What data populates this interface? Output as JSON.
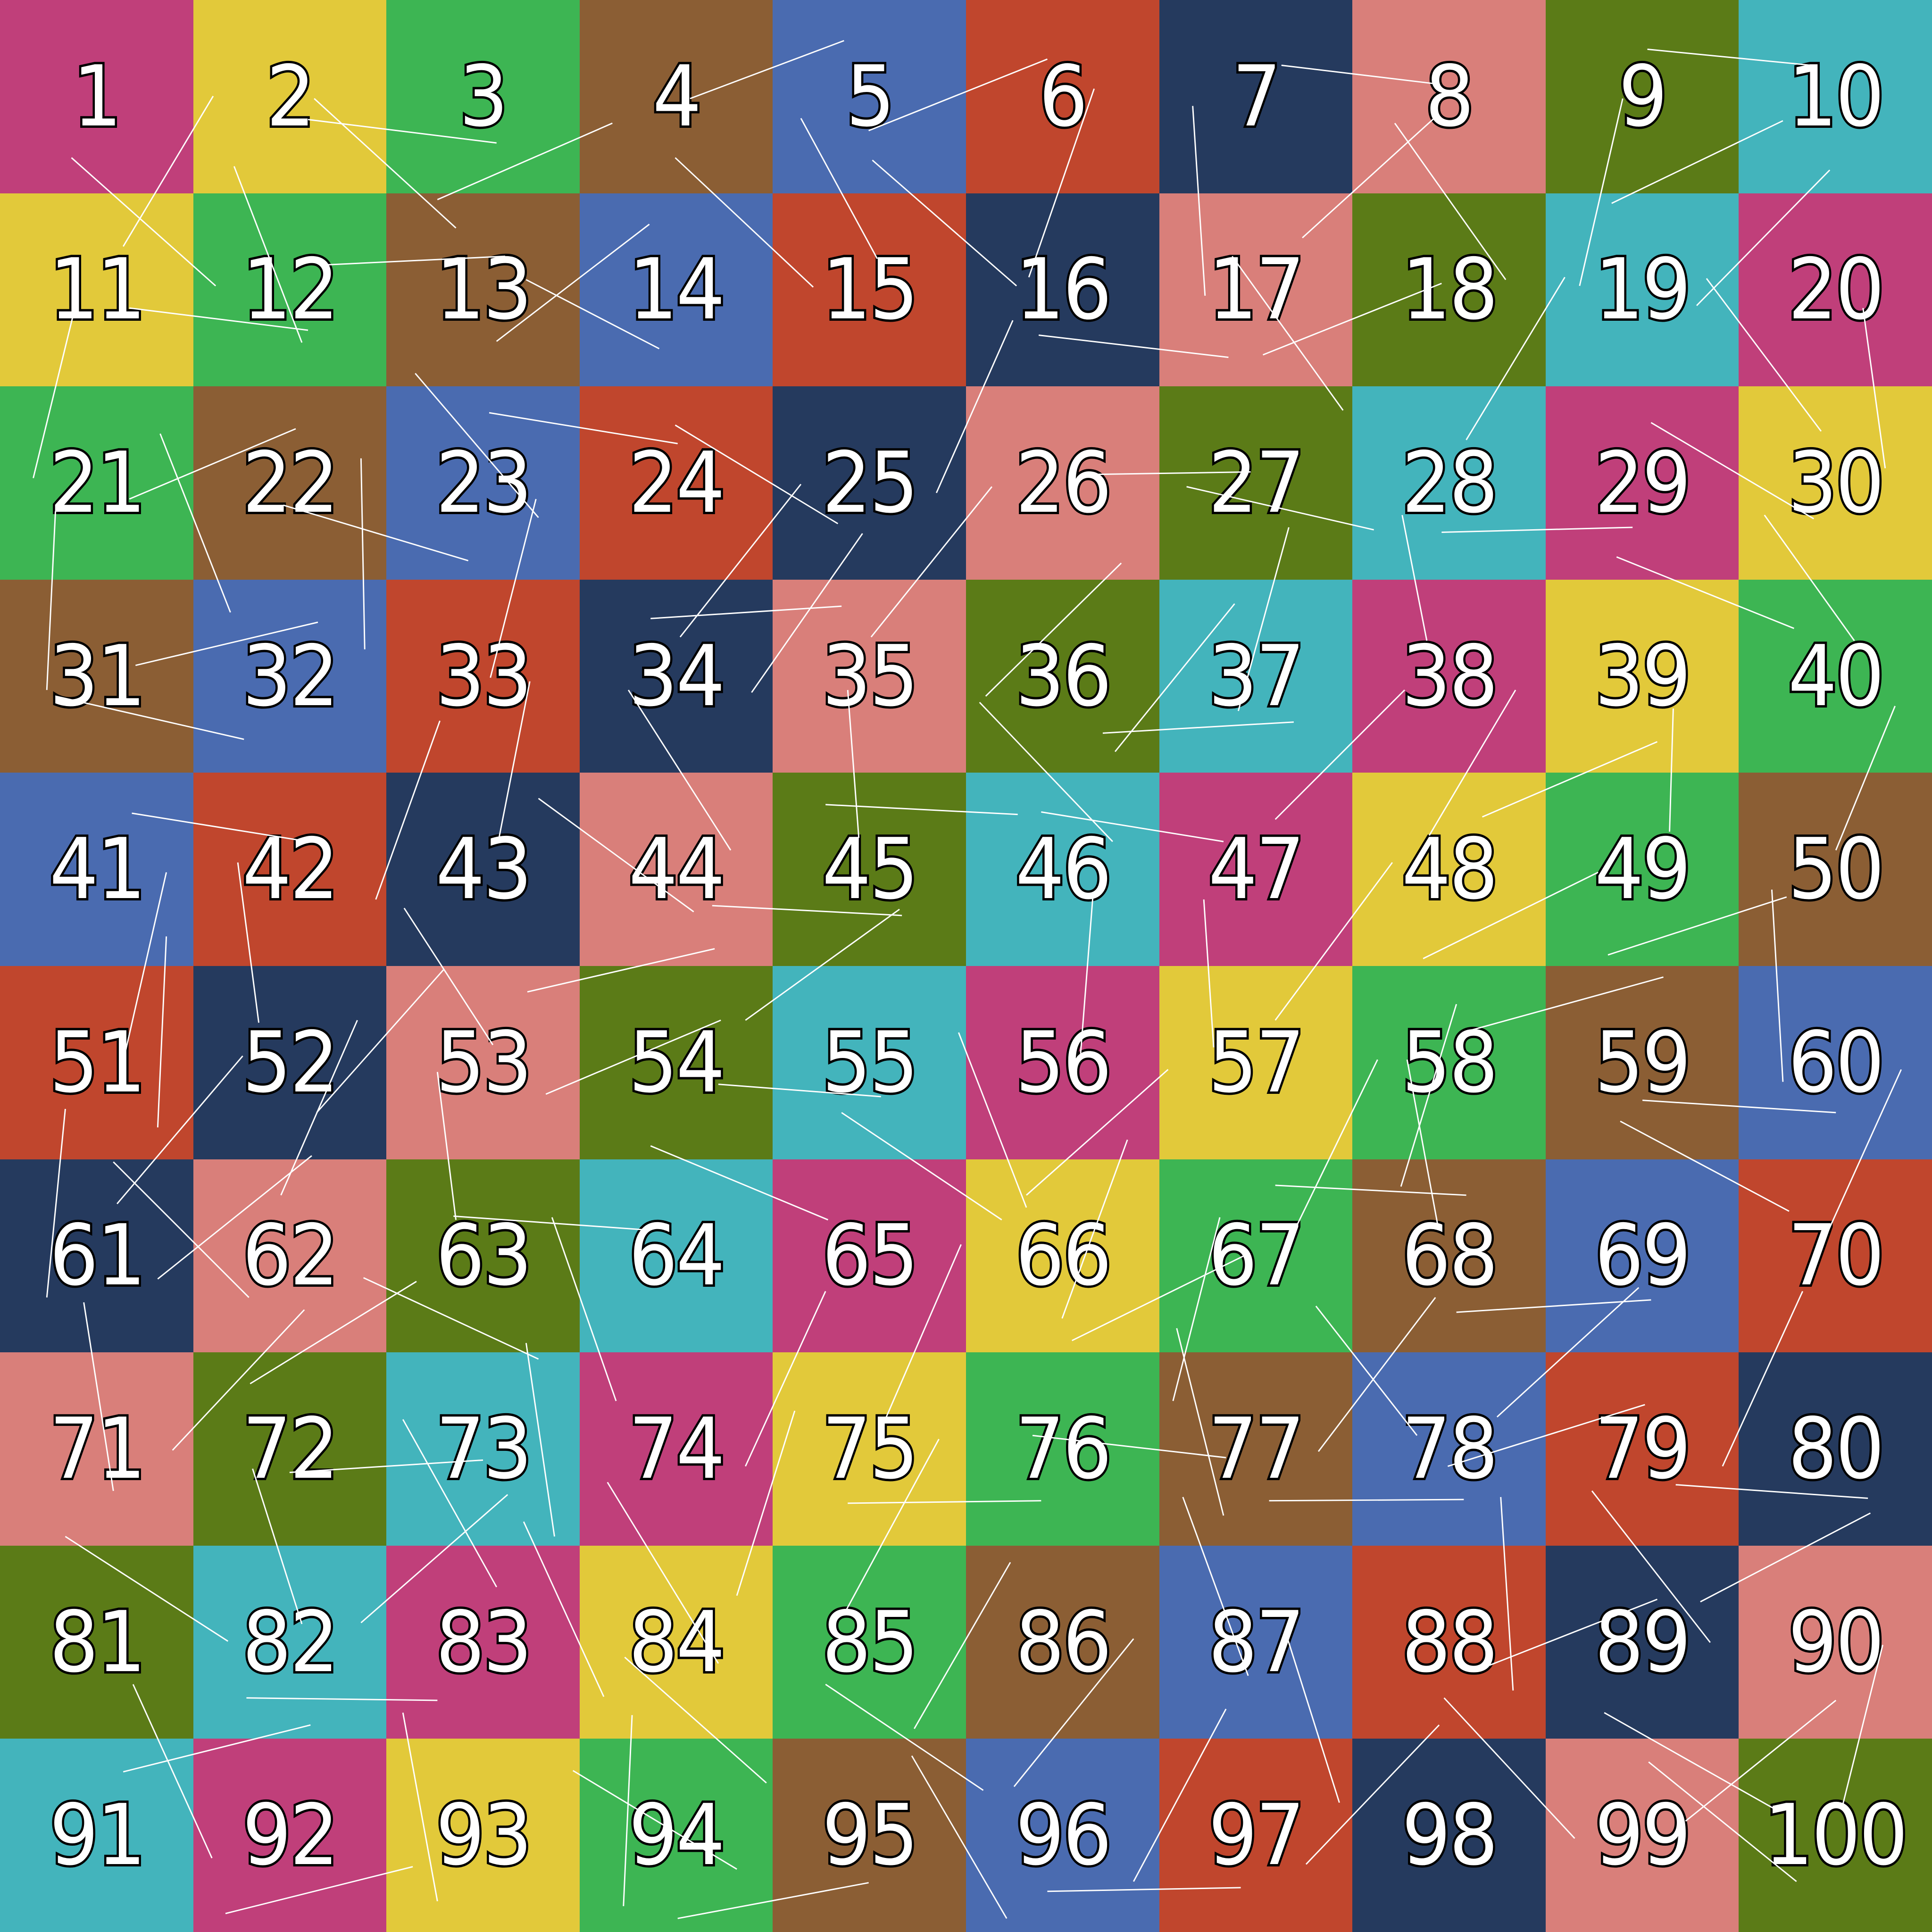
{
  "palette": [
    "#C03F7A",
    "#E2C93A",
    "#3DB553",
    "#8B5E34",
    "#4A6BB0",
    "#C0462D",
    "#253A5E",
    "#D97F7A",
    "#5B7B17",
    "#43B4BC"
  ],
  "line_color": "#FFFFFF",
  "cells": [
    1,
    2,
    3,
    4,
    5,
    6,
    7,
    8,
    9,
    10,
    11,
    12,
    13,
    14,
    15,
    16,
    17,
    18,
    19,
    20,
    21,
    22,
    23,
    24,
    25,
    26,
    27,
    28,
    29,
    30,
    31,
    32,
    33,
    34,
    35,
    36,
    37,
    38,
    39,
    40,
    41,
    42,
    43,
    44,
    45,
    46,
    47,
    48,
    49,
    50,
    51,
    52,
    53,
    54,
    55,
    56,
    57,
    58,
    59,
    60,
    61,
    62,
    63,
    64,
    65,
    66,
    67,
    68,
    69,
    70,
    71,
    72,
    73,
    74,
    75,
    76,
    77,
    78,
    79,
    80,
    81,
    82,
    83,
    84,
    85,
    86,
    87,
    88,
    89,
    90,
    91,
    92,
    93,
    94,
    95,
    96,
    97,
    98,
    99,
    100
  ]
}
